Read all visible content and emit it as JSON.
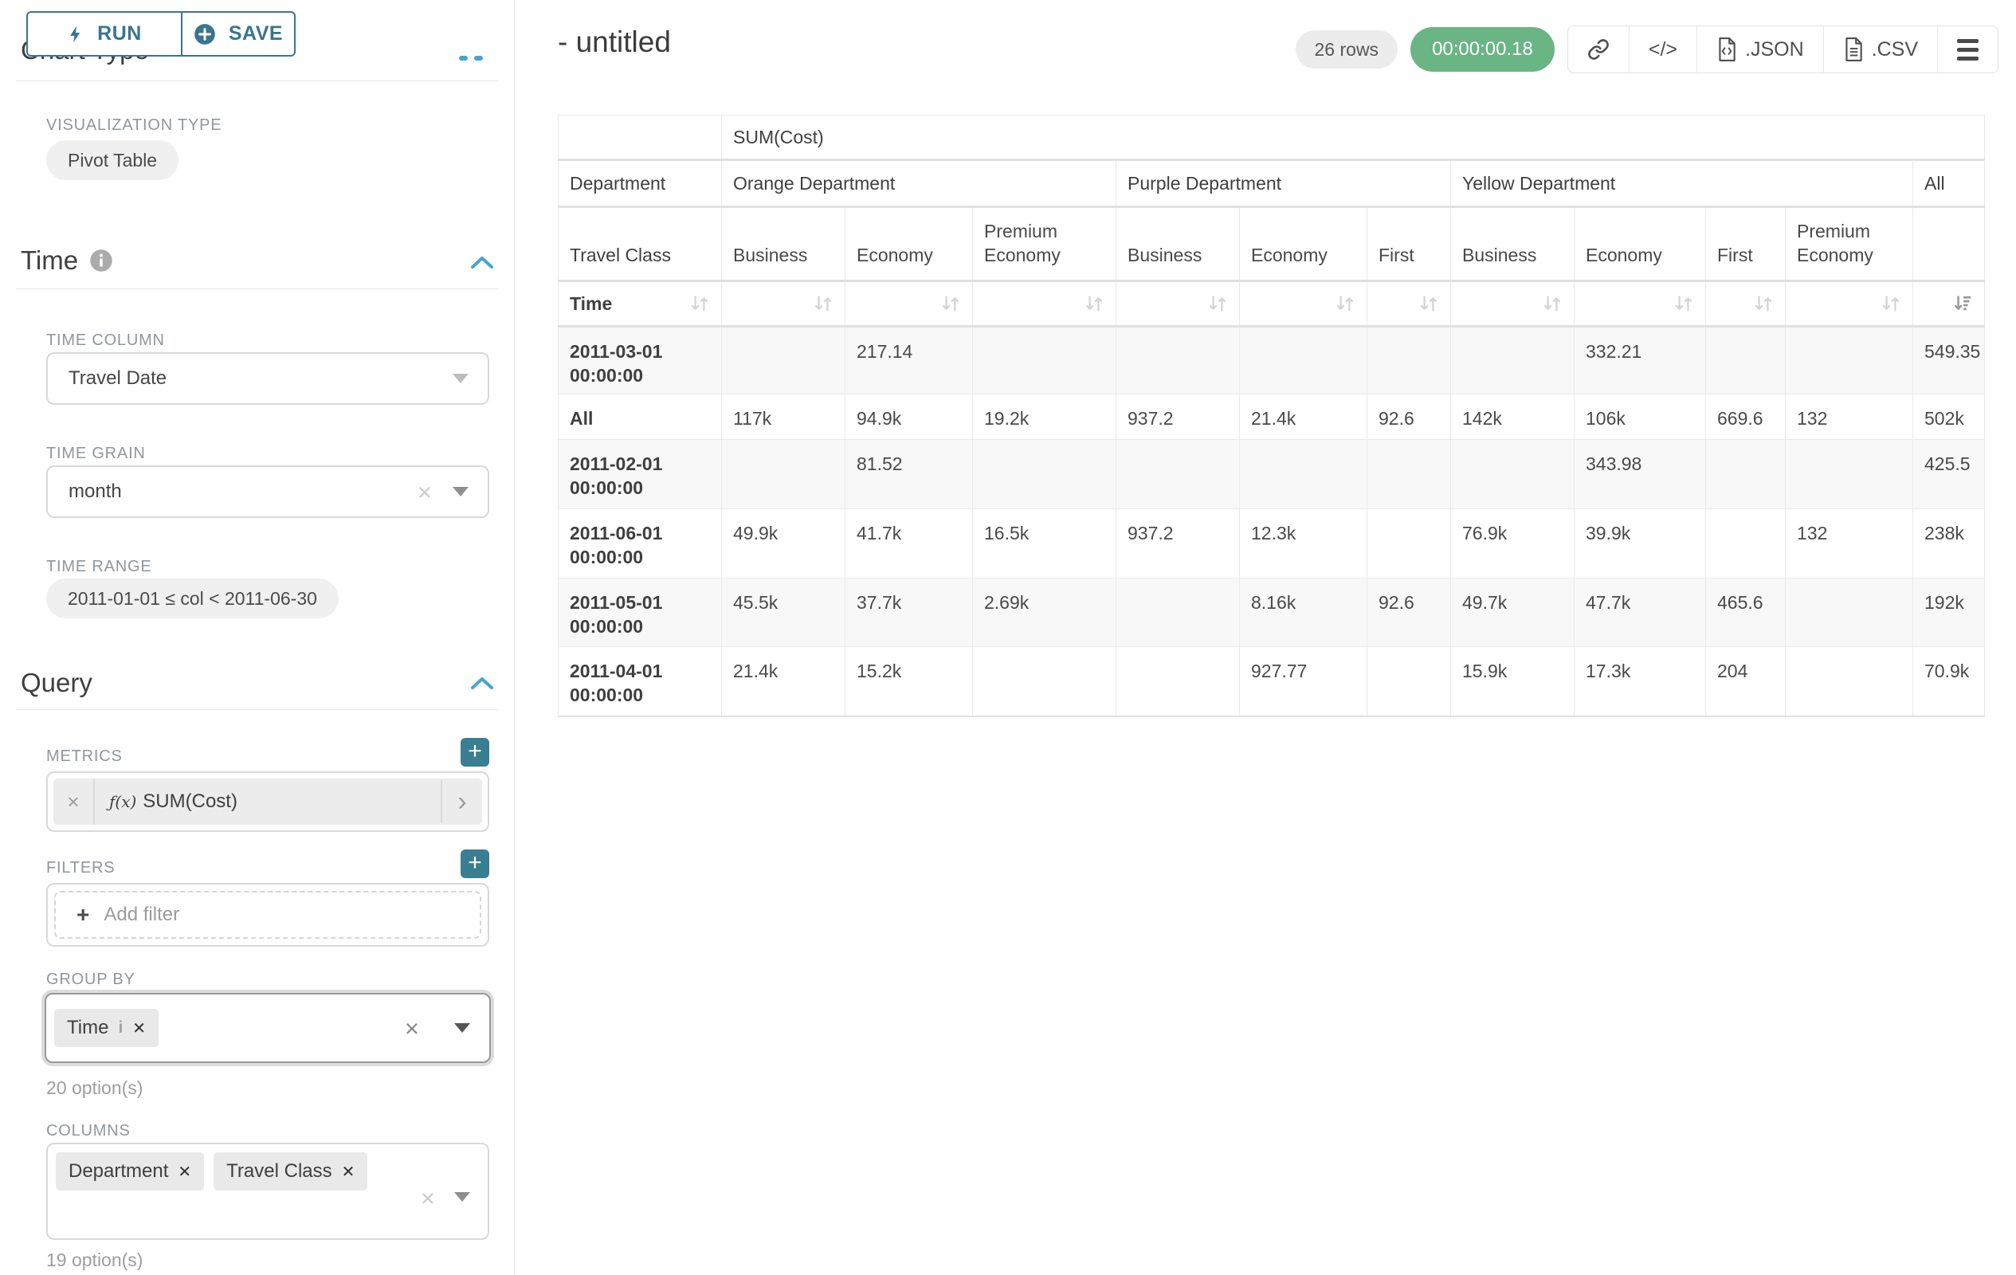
{
  "sidebar": {
    "run_label": "RUN",
    "save_label": "SAVE",
    "chart_type_heading": "Chart Type",
    "viz_type_label": "VISUALIZATION TYPE",
    "viz_type_value": "Pivot Table",
    "time": {
      "heading": "Time",
      "time_column_label": "TIME COLUMN",
      "time_column_value": "Travel Date",
      "time_grain_label": "TIME GRAIN",
      "time_grain_value": "month",
      "time_range_label": "TIME RANGE",
      "time_range_value": "2011-01-01 ≤ col < 2011-06-30"
    },
    "query": {
      "heading": "Query",
      "metrics_label": "METRICS",
      "metric_fx": "ƒ(x)",
      "metric_value": "SUM(Cost)",
      "filters_label": "FILTERS",
      "add_filter_label": "Add filter",
      "group_by_label": "GROUP BY",
      "group_by_chips": [
        "Time"
      ],
      "group_by_options": "20 option(s)",
      "columns_label": "COLUMNS",
      "columns_chips": [
        "Department",
        "Travel Class"
      ],
      "columns_options": "19 option(s)"
    }
  },
  "main": {
    "title": "- untitled",
    "rows_badge": "26 rows",
    "timer": "00:00:00.18",
    "code_icon_label": "</>",
    "export_json_label": ".JSON",
    "export_csv_label": ".CSV",
    "toolbar_icons": [
      "link-icon",
      "code-icon",
      "json-file-icon",
      "csv-file-icon",
      "menu-icon"
    ]
  },
  "chart_data": {
    "type": "table",
    "metric_header": "SUM(Cost)",
    "dimension_labels": {
      "columns": "Department",
      "sub_columns": "Travel Class",
      "rows": "Time"
    },
    "column_groups": [
      {
        "label": "Orange Department",
        "children": [
          "Business",
          "Economy",
          "Premium Economy"
        ]
      },
      {
        "label": "Purple Department",
        "children": [
          "Business",
          "Economy",
          "First"
        ]
      },
      {
        "label": "Yellow Department",
        "children": [
          "Business",
          "Economy",
          "First",
          "Premium Economy"
        ]
      },
      {
        "label": "All",
        "children": [
          ""
        ]
      }
    ],
    "sorted_column": "All",
    "sort_direction": "desc",
    "rows": [
      {
        "label": "2011-03-01 00:00:00",
        "values": [
          "",
          "217.14",
          "",
          "",
          "",
          "",
          "",
          "332.21",
          "",
          "",
          "549.35"
        ]
      },
      {
        "label": "All",
        "values": [
          "117k",
          "94.9k",
          "19.2k",
          "937.2",
          "21.4k",
          "92.6",
          "142k",
          "106k",
          "669.6",
          "132",
          "502k"
        ]
      },
      {
        "label": "2011-02-01 00:00:00",
        "values": [
          "",
          "81.52",
          "",
          "",
          "",
          "",
          "",
          "343.98",
          "",
          "",
          "425.5"
        ]
      },
      {
        "label": "2011-06-01 00:00:00",
        "values": [
          "49.9k",
          "41.7k",
          "16.5k",
          "937.2",
          "12.3k",
          "",
          "76.9k",
          "39.9k",
          "",
          "132",
          "238k"
        ]
      },
      {
        "label": "2011-05-01 00:00:00",
        "values": [
          "45.5k",
          "37.7k",
          "2.69k",
          "",
          "8.16k",
          "92.6",
          "49.7k",
          "47.7k",
          "465.6",
          "",
          "192k"
        ]
      },
      {
        "label": "2011-04-01 00:00:00",
        "values": [
          "21.4k",
          "15.2k",
          "",
          "",
          "927.77",
          "",
          "15.9k",
          "17.3k",
          "204",
          "",
          "70.9k"
        ]
      }
    ]
  }
}
